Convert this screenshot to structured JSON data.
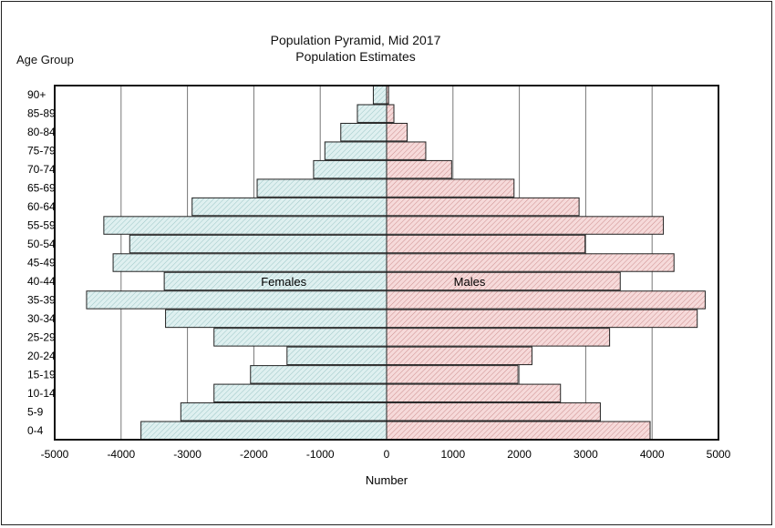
{
  "chart_data": {
    "type": "bar",
    "orientation": "horizontal",
    "title": "Population Pyramid, Mid 2017",
    "subtitle": "Population Estimates",
    "xlabel": "Number",
    "ylabel": "Age Group",
    "xlim": [
      -5000,
      5000
    ],
    "xticks": [
      "-5000",
      "-4000",
      "-3000",
      "-2000",
      "-1000",
      "0",
      "1000",
      "2000",
      "3000",
      "4000",
      "5000"
    ],
    "grid": true,
    "categories": [
      "0-4",
      "5-9",
      "10-14",
      "15-19",
      "20-24",
      "25-29",
      "30-34",
      "35-39",
      "40-44",
      "45-49",
      "50-54",
      "55-59",
      "60-64",
      "65-69",
      "70-74",
      "75-79",
      "80-84",
      "85-89",
      "90+"
    ],
    "series": [
      {
        "name": "Females",
        "color": "#d6ecec",
        "values": [
          -3700,
          -3100,
          -2600,
          -2050,
          -1500,
          -2600,
          -3330,
          -4520,
          -3350,
          -4120,
          -3870,
          -4260,
          -2930,
          -1950,
          -1100,
          -930,
          -690,
          -440,
          -200
        ]
      },
      {
        "name": "Males",
        "color": "#f0cccc",
        "values": [
          3970,
          3220,
          2620,
          1980,
          2190,
          3360,
          4680,
          4800,
          3520,
          4330,
          2990,
          4170,
          2900,
          1920,
          980,
          590,
          310,
          110,
          30
        ]
      }
    ]
  }
}
